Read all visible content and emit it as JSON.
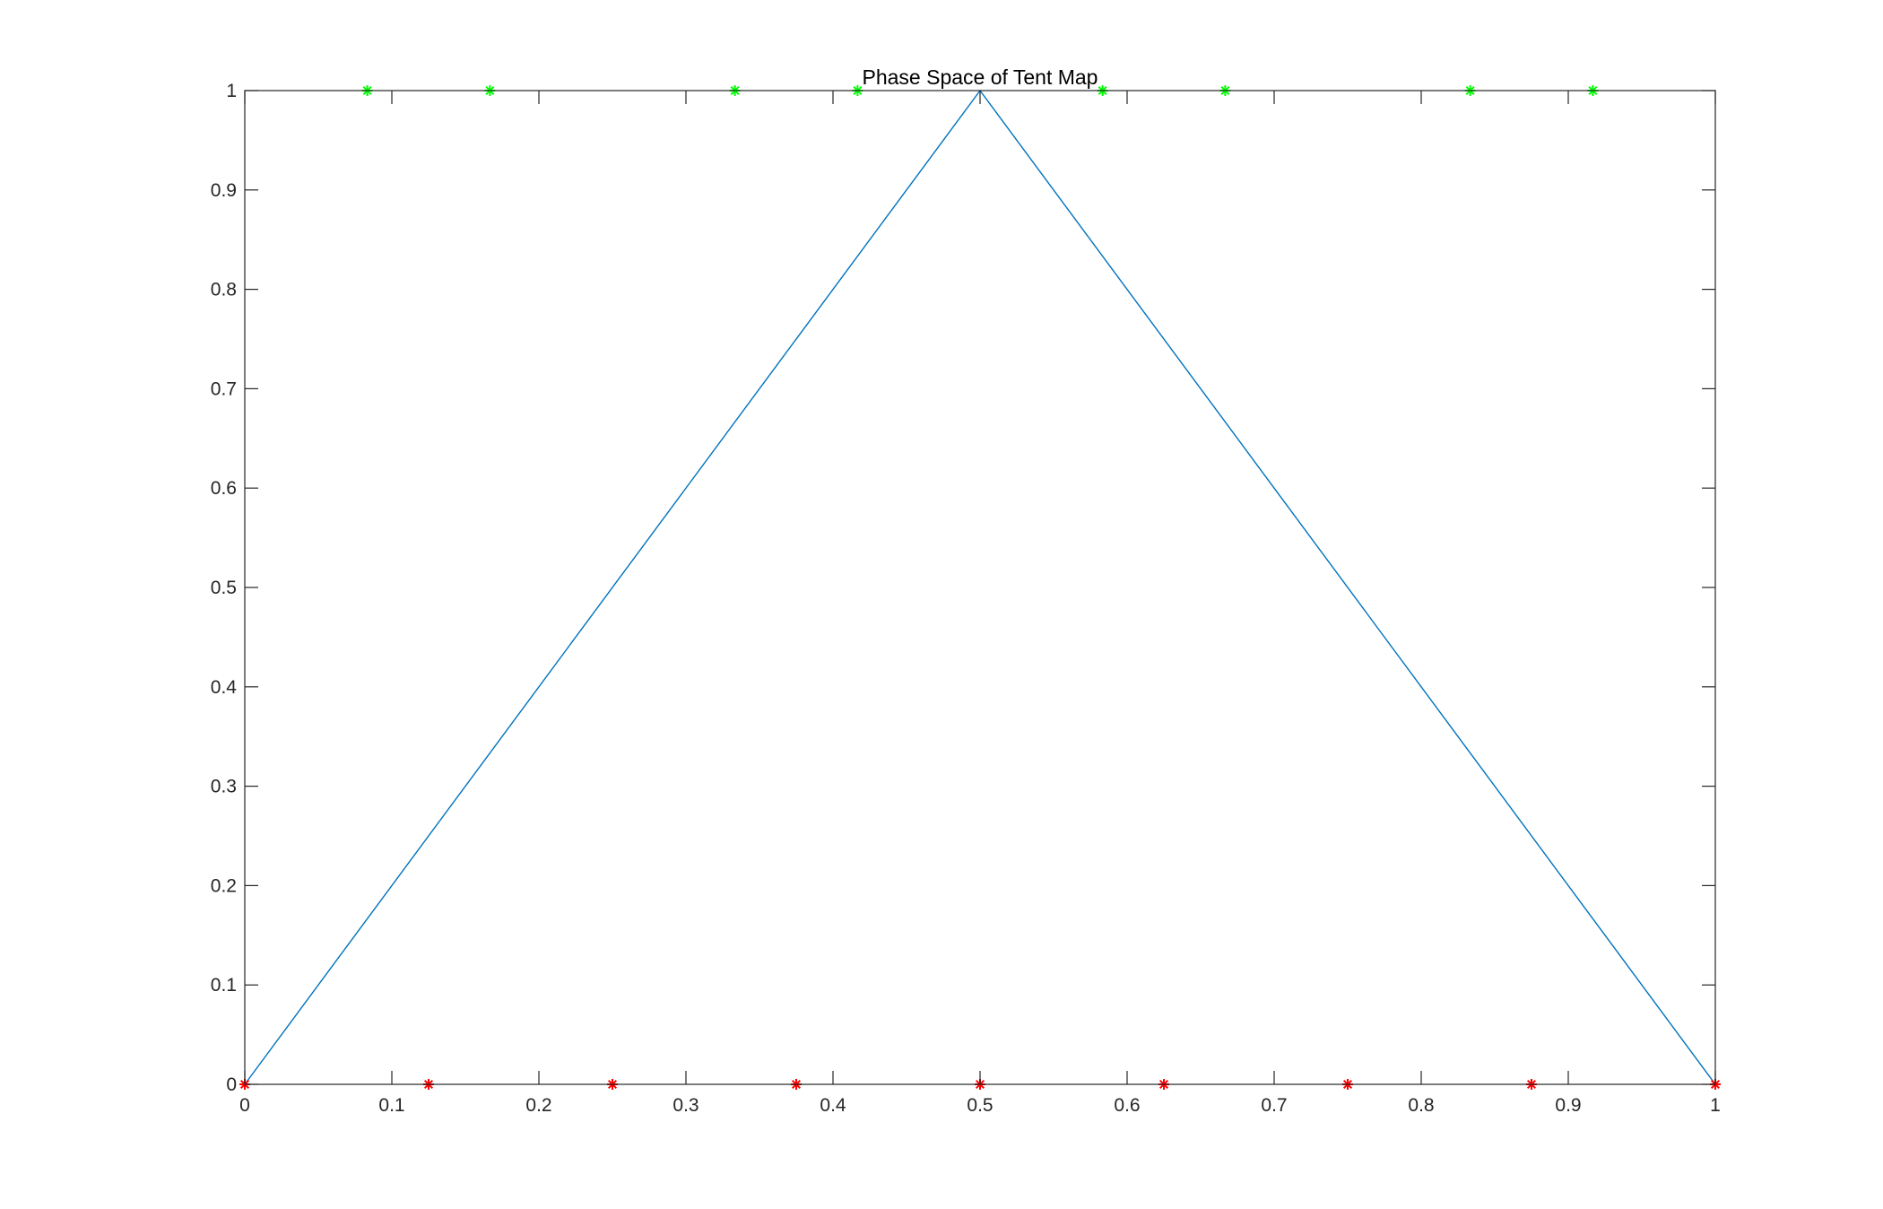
{
  "chart_data": {
    "type": "line",
    "title": "Phase Space of Tent Map",
    "xlabel": "",
    "ylabel": "",
    "xlim": [
      0,
      1
    ],
    "ylim": [
      0,
      1
    ],
    "x_ticks": [
      0,
      0.1,
      0.2,
      0.3,
      0.4,
      0.5,
      0.6,
      0.7,
      0.8,
      0.9,
      1
    ],
    "x_tick_labels": [
      "0",
      "0.1",
      "0.2",
      "0.3",
      "0.4",
      "0.5",
      "0.6",
      "0.7",
      "0.8",
      "0.9",
      "1"
    ],
    "y_ticks": [
      0,
      0.1,
      0.2,
      0.3,
      0.4,
      0.5,
      0.6,
      0.7,
      0.8,
      0.9,
      1
    ],
    "y_tick_labels": [
      "0",
      "0.1",
      "0.2",
      "0.3",
      "0.4",
      "0.5",
      "0.6",
      "0.7",
      "0.8",
      "0.9",
      "1"
    ],
    "grid": false,
    "legend": "none",
    "series": [
      {
        "kind": "line",
        "color": "#0072BD",
        "points": [
          [
            0,
            0
          ],
          [
            0.5,
            1
          ],
          [
            1,
            0
          ]
        ]
      },
      {
        "kind": "markers",
        "marker": "asterisk",
        "color": "#00FF00",
        "points": [
          [
            0.0833,
            1
          ],
          [
            0.1667,
            1
          ],
          [
            0.3333,
            1
          ],
          [
            0.4167,
            1
          ],
          [
            0.5833,
            1
          ],
          [
            0.6667,
            1
          ],
          [
            0.8333,
            1
          ],
          [
            0.9167,
            1
          ]
        ]
      },
      {
        "kind": "markers",
        "marker": "asterisk",
        "color": "#FF0000",
        "points": [
          [
            0,
            0
          ],
          [
            0.125,
            0
          ],
          [
            0.25,
            0
          ],
          [
            0.375,
            0
          ],
          [
            0.5,
            0
          ],
          [
            0.625,
            0
          ],
          [
            0.75,
            0
          ],
          [
            0.875,
            0
          ],
          [
            1,
            0
          ]
        ]
      }
    ]
  }
}
